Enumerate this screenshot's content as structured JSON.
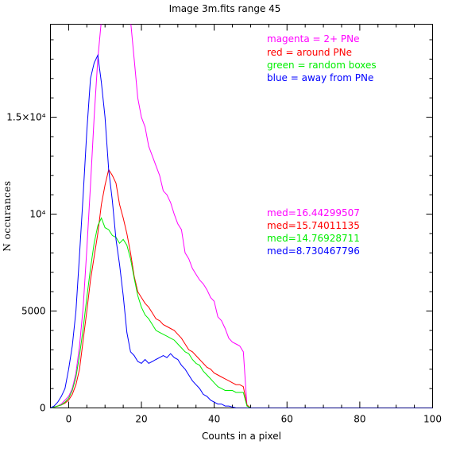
{
  "chart_data": {
    "type": "line",
    "title": "Image 3m.fits   range 45",
    "xlabel": "Counts in a pixel",
    "ylabel": "N occurances",
    "xlim": [
      -5,
      100
    ],
    "ylim": [
      0,
      19800
    ],
    "x_ticks": [
      {
        "value": 0,
        "label": "0"
      },
      {
        "value": 20,
        "label": "20"
      },
      {
        "value": 40,
        "label": "40"
      },
      {
        "value": 60,
        "label": "60"
      },
      {
        "value": 80,
        "label": "80"
      },
      {
        "value": 100,
        "label": "100"
      }
    ],
    "y_ticks": [
      {
        "value": 0,
        "label": "0"
      },
      {
        "value": 5000,
        "label": "5000"
      },
      {
        "value": 10000,
        "label": "10⁴"
      },
      {
        "value": 15000,
        "label": "1.5×10⁴"
      }
    ],
    "grid": false,
    "legend_position": "top-right",
    "legend": [
      {
        "text": "magenta = 2+ PNe",
        "color": "#ff00ff"
      },
      {
        "text": "red = around PNe",
        "color": "#ff0000"
      },
      {
        "text": "green = random boxes",
        "color": "#00ee00"
      },
      {
        "text": "blue = away from PNe",
        "color": "#0000ff"
      }
    ],
    "annotations": [
      {
        "text": "med=16.44299507",
        "color": "#ff00ff"
      },
      {
        "text": "med=15.74011135",
        "color": "#ff0000"
      },
      {
        "text": "med=14.76928711",
        "color": "#00ee00"
      },
      {
        "text": "med=8.730467796",
        "color": "#0000ff"
      }
    ],
    "series": [
      {
        "color": "#ff00ff",
        "x": [
          -5,
          -4,
          -3,
          -2,
          -1,
          0,
          1,
          2,
          3,
          4,
          5,
          6,
          7,
          8,
          9,
          10,
          14,
          17,
          18,
          19,
          20,
          21,
          22,
          23,
          24,
          25,
          26,
          27,
          28,
          29,
          30,
          31,
          32,
          33,
          34,
          35,
          36,
          37,
          38,
          39,
          40,
          41,
          42,
          43,
          44,
          45,
          46,
          47,
          48,
          49,
          50,
          52,
          100
        ],
        "y": [
          0,
          50,
          100,
          200,
          400,
          600,
          1000,
          1800,
          3200,
          5200,
          8200,
          11500,
          15000,
          18000,
          20000,
          20000,
          20000,
          20000,
          18000,
          16000,
          15000,
          14500,
          13500,
          13000,
          12500,
          12000,
          11200,
          11000,
          10600,
          10000,
          9500,
          9200,
          8000,
          7700,
          7200,
          6900,
          6600,
          6400,
          6100,
          5700,
          5500,
          4700,
          4500,
          4100,
          3600,
          3400,
          3300,
          3200,
          2900,
          100,
          0,
          0,
          0
        ]
      },
      {
        "color": "#ff0000",
        "x": [
          -5,
          -4,
          -3,
          -2,
          -1,
          0,
          1,
          2,
          3,
          4,
          5,
          6,
          7,
          8,
          9,
          10,
          11,
          12,
          13,
          14,
          15,
          16,
          17,
          18,
          19,
          20,
          21,
          22,
          23,
          24,
          25,
          26,
          27,
          28,
          29,
          30,
          31,
          32,
          33,
          34,
          35,
          36,
          37,
          38,
          39,
          40,
          41,
          42,
          43,
          44,
          45,
          46,
          47,
          48,
          49,
          50,
          52,
          100
        ],
        "y": [
          0,
          50,
          100,
          150,
          250,
          400,
          700,
          1200,
          2000,
          3500,
          5000,
          6600,
          7800,
          9000,
          10500,
          11500,
          12300,
          12000,
          11600,
          10500,
          9800,
          9000,
          8000,
          6800,
          6000,
          5700,
          5400,
          5200,
          4900,
          4600,
          4500,
          4300,
          4200,
          4100,
          4000,
          3800,
          3600,
          3300,
          3000,
          2900,
          2700,
          2500,
          2300,
          2100,
          2000,
          1800,
          1700,
          1600,
          1500,
          1400,
          1300,
          1200,
          1200,
          1100,
          150,
          0,
          0,
          0
        ]
      },
      {
        "color": "#00ee00",
        "x": [
          -5,
          -4,
          -3,
          -2,
          -1,
          0,
          1,
          2,
          3,
          4,
          5,
          6,
          7,
          8,
          9,
          10,
          11,
          12,
          13,
          14,
          15,
          16,
          17,
          18,
          19,
          20,
          21,
          22,
          23,
          24,
          25,
          26,
          27,
          28,
          29,
          30,
          31,
          32,
          33,
          34,
          35,
          36,
          37,
          38,
          39,
          40,
          41,
          42,
          43,
          44,
          45,
          46,
          47,
          48,
          49,
          50,
          52,
          100
        ],
        "y": [
          0,
          50,
          100,
          150,
          300,
          500,
          900,
          1600,
          2700,
          4100,
          5700,
          7200,
          8500,
          9400,
          9800,
          9300,
          9200,
          8900,
          8800,
          8500,
          8700,
          8400,
          7700,
          6700,
          5800,
          5200,
          4800,
          4600,
          4300,
          4000,
          3900,
          3800,
          3700,
          3600,
          3500,
          3300,
          3100,
          2900,
          2800,
          2500,
          2300,
          2200,
          1900,
          1700,
          1500,
          1300,
          1100,
          1000,
          900,
          900,
          900,
          800,
          800,
          800,
          100,
          0,
          0,
          0
        ]
      },
      {
        "color": "#0000ff",
        "x": [
          -5,
          -4,
          -3,
          -2,
          -1,
          0,
          1,
          2,
          3,
          4,
          5,
          6,
          7,
          8,
          9,
          10,
          11,
          12,
          13,
          14,
          15,
          16,
          17,
          18,
          19,
          20,
          21,
          22,
          23,
          24,
          25,
          26,
          27,
          28,
          29,
          30,
          31,
          32,
          33,
          34,
          35,
          36,
          37,
          38,
          39,
          40,
          41,
          42,
          43,
          44,
          45,
          46,
          47,
          48,
          49,
          50,
          52,
          100
        ],
        "y": [
          0,
          100,
          300,
          600,
          1000,
          2000,
          3200,
          5000,
          7900,
          11000,
          14300,
          17000,
          17800,
          18200,
          16800,
          15000,
          12300,
          10700,
          8700,
          7400,
          5800,
          3900,
          2900,
          2700,
          2400,
          2300,
          2500,
          2300,
          2400,
          2500,
          2600,
          2700,
          2600,
          2800,
          2600,
          2500,
          2200,
          2000,
          1700,
          1400,
          1200,
          1000,
          700,
          600,
          400,
          300,
          200,
          200,
          100,
          100,
          50,
          0,
          0,
          0,
          0,
          0,
          0,
          0
        ]
      }
    ]
  }
}
